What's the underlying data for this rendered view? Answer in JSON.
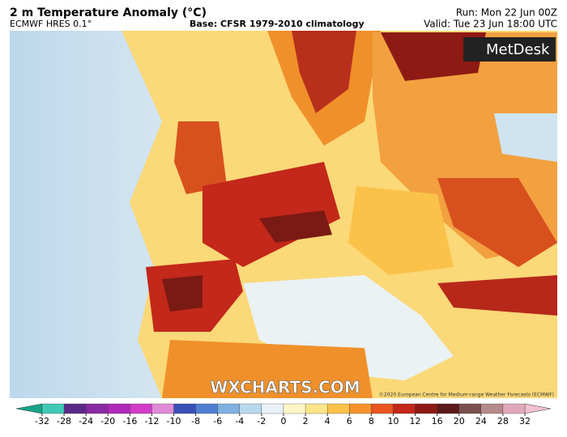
{
  "header": {
    "title": "2 m Temperature Anomaly (°C)",
    "model": "ECMWF HRES 0.1°",
    "base": "Base: CFSR 1979-2010 climatology",
    "run": "Run: Mon 22 Jun 00Z",
    "valid": "Valid: Tue 23 Jun 18:00 UTC"
  },
  "logo": "MetDesk",
  "watermark": "WXCHARTS.COM",
  "copyright": "©2020 European Centre for Medium-range Weather Forecasts (ECMWF)",
  "colorbar": {
    "ticks": [
      -32,
      -28,
      -24,
      -20,
      -16,
      -12,
      -10,
      -8,
      -6,
      -4,
      -2,
      0,
      2,
      4,
      6,
      8,
      10,
      12,
      16,
      20,
      24,
      28,
      32
    ],
    "colors": [
      "#17a589",
      "#3fc9b5",
      "#5a2a86",
      "#8a2aa0",
      "#b02ab8",
      "#d23cc8",
      "#e08ad8",
      "#3a4fb8",
      "#4f7fd0",
      "#7fb0e0",
      "#b8d8ee",
      "#e8f2f8",
      "#fff6c8",
      "#fde58a",
      "#fbc24a",
      "#f5932a",
      "#e8551e",
      "#c3281a",
      "#8e1a14",
      "#5a1a18",
      "#7a5050",
      "#b58a8a",
      "#e0a8b8",
      "#f0c0d0"
    ]
  }
}
